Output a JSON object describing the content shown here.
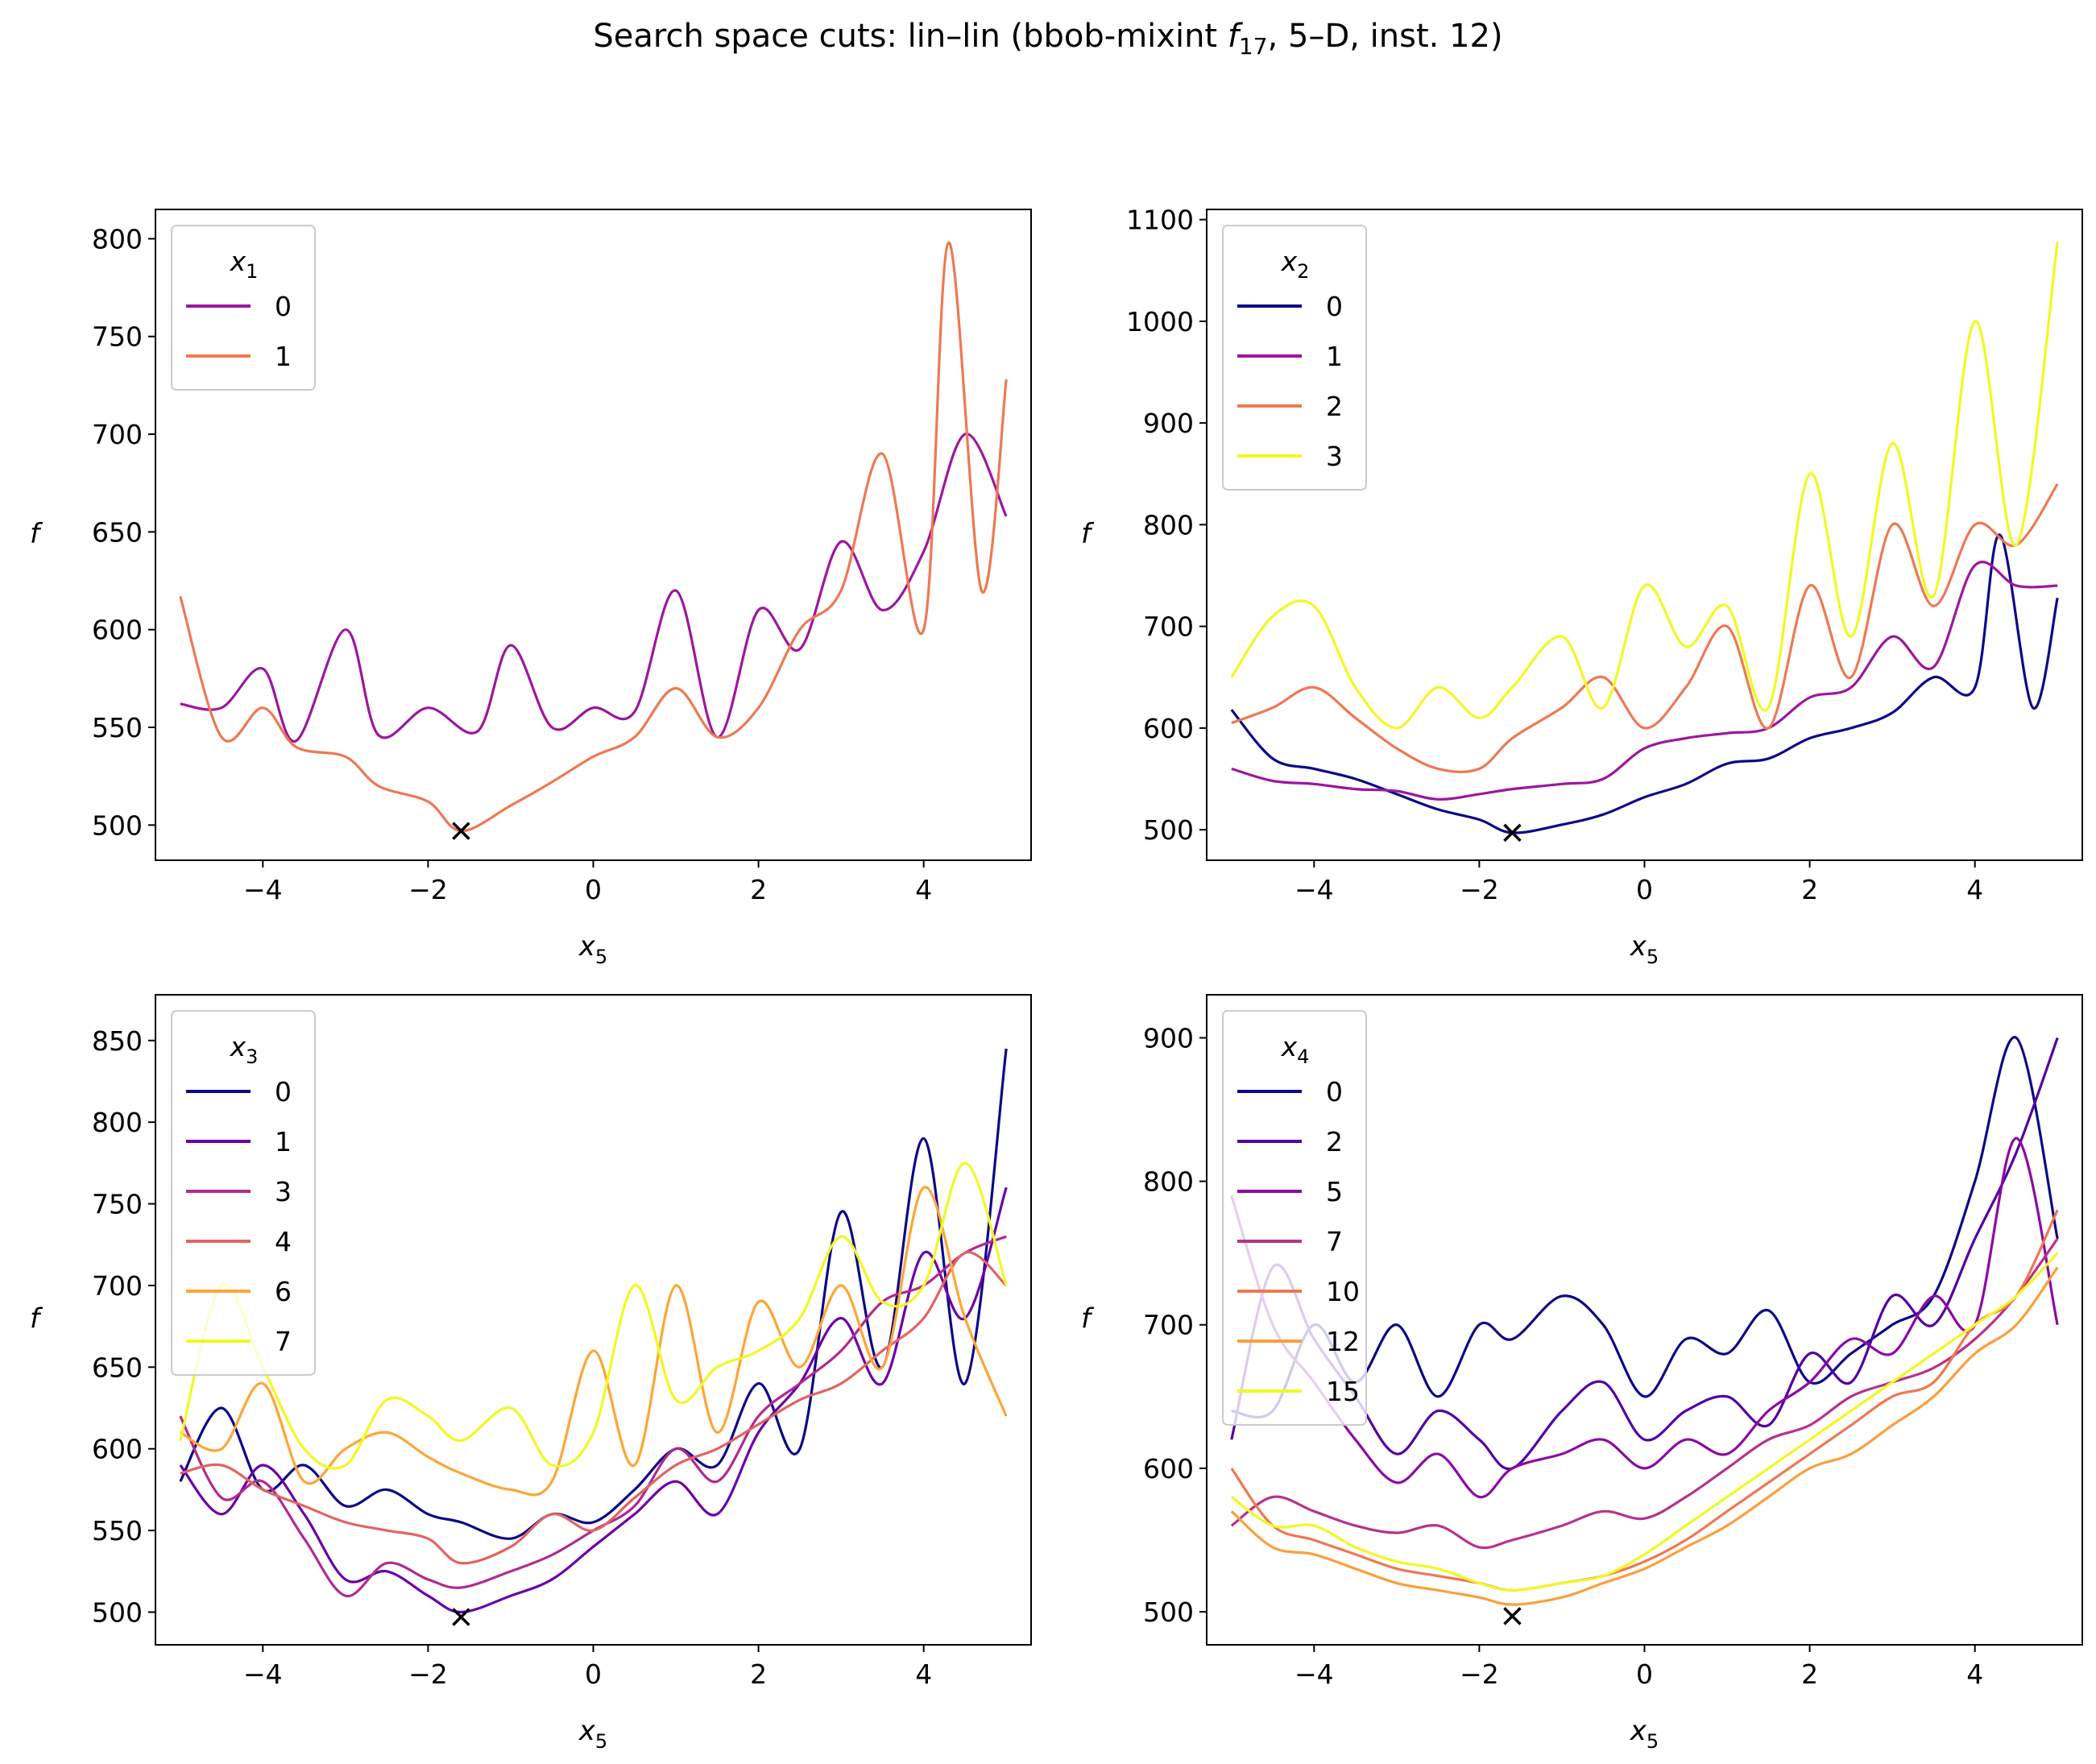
{
  "suptitle": "Search space cuts: lin–lin (bbob-mixint f17, 5–D, inst. 12)",
  "chart_data": [
    {
      "type": "line",
      "xlabel": "x5",
      "ylabel": "f",
      "xlim": [
        -5.3,
        5.3
      ],
      "ylim": [
        482,
        815
      ],
      "xticks": [
        -4,
        -2,
        0,
        2,
        4
      ],
      "yticks": [
        500,
        550,
        600,
        650,
        700,
        750,
        800
      ],
      "legend_title": "x1",
      "legend_placement": "upper left",
      "minimum_marker": {
        "x": -1.6,
        "y": 497
      },
      "series": [
        {
          "name": "0",
          "color": "#9c179e",
          "x": [
            -5,
            -4.5,
            -4,
            -3.6,
            -3.0,
            -2.6,
            -2.0,
            -1.4,
            -1.0,
            -0.5,
            0.0,
            0.5,
            1.0,
            1.5,
            2.0,
            2.5,
            3.0,
            3.5,
            4.0,
            4.5,
            5.0
          ],
          "y": [
            562,
            560,
            580,
            543,
            600,
            546,
            560,
            548,
            592,
            550,
            560,
            558,
            620,
            545,
            610,
            590,
            645,
            610,
            640,
            700,
            658
          ]
        },
        {
          "name": "1",
          "color": "#ed7953",
          "x": [
            -5,
            -4.5,
            -4,
            -3.6,
            -3.0,
            -2.6,
            -2.0,
            -1.6,
            -1.0,
            -0.5,
            0.0,
            0.5,
            1.0,
            1.5,
            2.0,
            2.5,
            3.0,
            3.5,
            4.0,
            4.3,
            4.7,
            5.0
          ],
          "y": [
            617,
            545,
            560,
            540,
            535,
            520,
            512,
            497,
            510,
            522,
            535,
            545,
            570,
            545,
            560,
            600,
            620,
            690,
            600,
            798,
            620,
            728
          ]
        }
      ]
    },
    {
      "type": "line",
      "xlabel": "x5",
      "ylabel": "f",
      "xlim": [
        -5.3,
        5.3
      ],
      "ylim": [
        470,
        1110
      ],
      "xticks": [
        -4,
        -2,
        0,
        2,
        4
      ],
      "yticks": [
        500,
        600,
        700,
        800,
        900,
        1000,
        1100
      ],
      "legend_title": "x2",
      "legend_placement": "upper left",
      "minimum_marker": {
        "x": -1.6,
        "y": 497
      },
      "series": [
        {
          "name": "0",
          "color": "#0d0887",
          "x": [
            -5,
            -4.5,
            -4,
            -3.5,
            -3.0,
            -2.5,
            -2.0,
            -1.6,
            -1.0,
            -0.5,
            0.0,
            0.5,
            1.0,
            1.5,
            2.0,
            2.5,
            3.0,
            3.5,
            4.0,
            4.3,
            4.7,
            5.0
          ],
          "y": [
            618,
            570,
            560,
            550,
            535,
            520,
            510,
            497,
            505,
            515,
            532,
            545,
            565,
            570,
            590,
            600,
            615,
            650,
            640,
            790,
            620,
            728
          ]
        },
        {
          "name": "1",
          "color": "#9c179e",
          "x": [
            -5,
            -4.5,
            -4,
            -3.5,
            -3.0,
            -2.5,
            -2.0,
            -1.6,
            -1.0,
            -0.5,
            0.0,
            0.5,
            1.0,
            1.5,
            2.0,
            2.5,
            3.0,
            3.5,
            4.0,
            4.5,
            5.0
          ],
          "y": [
            560,
            548,
            545,
            540,
            538,
            530,
            535,
            540,
            545,
            550,
            580,
            590,
            595,
            600,
            630,
            640,
            690,
            660,
            760,
            740,
            740
          ]
        },
        {
          "name": "2",
          "color": "#ed7953",
          "x": [
            -5,
            -4.5,
            -4,
            -3.5,
            -3.0,
            -2.5,
            -2.0,
            -1.6,
            -1.0,
            -0.5,
            0.0,
            0.5,
            1.0,
            1.5,
            2.0,
            2.5,
            3.0,
            3.5,
            4.0,
            4.5,
            5.0
          ],
          "y": [
            605,
            620,
            640,
            610,
            580,
            560,
            560,
            590,
            620,
            650,
            600,
            640,
            700,
            600,
            740,
            650,
            800,
            720,
            800,
            780,
            840
          ]
        },
        {
          "name": "3",
          "color": "#f0f921",
          "x": [
            -5,
            -4.5,
            -4,
            -3.5,
            -3.0,
            -2.5,
            -2.0,
            -1.6,
            -1.0,
            -0.5,
            0.0,
            0.5,
            1.0,
            1.5,
            2.0,
            2.5,
            3.0,
            3.5,
            4.0,
            4.5,
            5.0
          ],
          "y": [
            650,
            710,
            720,
            640,
            600,
            640,
            610,
            640,
            690,
            620,
            740,
            680,
            720,
            620,
            850,
            690,
            880,
            730,
            1000,
            780,
            1078
          ]
        }
      ]
    },
    {
      "type": "line",
      "xlabel": "x5",
      "ylabel": "f",
      "xlim": [
        -5.3,
        5.3
      ],
      "ylim": [
        480,
        878
      ],
      "xticks": [
        -4,
        -2,
        0,
        2,
        4
      ],
      "yticks": [
        500,
        550,
        600,
        650,
        700,
        750,
        800,
        850
      ],
      "legend_title": "x3",
      "legend_placement": "upper left",
      "minimum_marker": {
        "x": -1.6,
        "y": 497
      },
      "series": [
        {
          "name": "0",
          "color": "#0d0887",
          "x": [
            -5,
            -4.5,
            -4,
            -3.5,
            -3.0,
            -2.5,
            -2.0,
            -1.6,
            -1.0,
            -0.5,
            0.0,
            0.5,
            1.0,
            1.5,
            2.0,
            2.5,
            3.0,
            3.5,
            4.0,
            4.5,
            5.0
          ],
          "y": [
            580,
            625,
            575,
            590,
            565,
            575,
            560,
            555,
            545,
            560,
            555,
            575,
            600,
            590,
            640,
            600,
            745,
            650,
            790,
            640,
            845
          ]
        },
        {
          "name": "1",
          "color": "#6a00a8",
          "x": [
            -5,
            -4.5,
            -4,
            -3.5,
            -3.0,
            -2.5,
            -2.0,
            -1.6,
            -1.0,
            -0.5,
            0.0,
            0.5,
            1.0,
            1.5,
            2.0,
            2.5,
            3.0,
            3.5,
            4.0,
            4.5,
            5.0
          ],
          "y": [
            590,
            560,
            590,
            560,
            520,
            525,
            510,
            500,
            510,
            520,
            540,
            560,
            580,
            560,
            610,
            640,
            680,
            640,
            720,
            680,
            760
          ]
        },
        {
          "name": "3",
          "color": "#b12a90",
          "x": [
            -5,
            -4.5,
            -4,
            -3.5,
            -3.0,
            -2.5,
            -2.0,
            -1.6,
            -1.0,
            -0.5,
            0.0,
            0.5,
            1.0,
            1.5,
            2.0,
            2.5,
            3.0,
            3.5,
            4.0,
            4.5,
            5.0
          ],
          "y": [
            620,
            570,
            580,
            545,
            510,
            530,
            520,
            515,
            525,
            535,
            550,
            565,
            600,
            580,
            620,
            640,
            660,
            690,
            700,
            720,
            730
          ]
        },
        {
          "name": "4",
          "color": "#e16462",
          "x": [
            -5,
            -4.5,
            -4,
            -3.5,
            -3.0,
            -2.5,
            -2.0,
            -1.6,
            -1.0,
            -0.5,
            0.0,
            0.5,
            1.0,
            1.5,
            2.0,
            2.5,
            3.0,
            3.5,
            4.0,
            4.5,
            5.0
          ],
          "y": [
            585,
            590,
            575,
            565,
            555,
            550,
            545,
            530,
            540,
            560,
            550,
            570,
            590,
            600,
            615,
            630,
            640,
            660,
            680,
            720,
            700
          ]
        },
        {
          "name": "6",
          "color": "#fca636",
          "x": [
            -5,
            -4.5,
            -4,
            -3.5,
            -3.0,
            -2.5,
            -2.0,
            -1.6,
            -1.0,
            -0.5,
            0.0,
            0.5,
            1.0,
            1.5,
            2.0,
            2.5,
            3.0,
            3.5,
            4.0,
            4.5,
            5.0
          ],
          "y": [
            610,
            600,
            640,
            580,
            600,
            610,
            595,
            585,
            575,
            580,
            660,
            590,
            700,
            610,
            690,
            650,
            700,
            650,
            760,
            680,
            620
          ]
        },
        {
          "name": "7",
          "color": "#f0f921",
          "x": [
            -5,
            -4.5,
            -4,
            -3.5,
            -3.0,
            -2.5,
            -2.0,
            -1.6,
            -1.0,
            -0.5,
            0.0,
            0.5,
            1.0,
            1.5,
            2.0,
            2.5,
            3.0,
            3.5,
            4.0,
            4.5,
            5.0
          ],
          "y": [
            605,
            700,
            650,
            600,
            590,
            630,
            620,
            605,
            625,
            590,
            610,
            700,
            630,
            650,
            660,
            680,
            730,
            690,
            700,
            775,
            700
          ]
        }
      ]
    },
    {
      "type": "line",
      "xlabel": "x5",
      "ylabel": "f",
      "xlim": [
        -5.3,
        5.3
      ],
      "ylim": [
        477,
        930
      ],
      "xticks": [
        -4,
        -2,
        0,
        2,
        4
      ],
      "yticks": [
        500,
        600,
        700,
        800,
        900
      ],
      "legend_title": "x4",
      "legend_placement": "upper left",
      "minimum_marker": {
        "x": -1.6,
        "y": 497
      },
      "series": [
        {
          "name": "0",
          "color": "#0d0887",
          "x": [
            -5,
            -4.5,
            -4,
            -3.5,
            -3.0,
            -2.5,
            -2.0,
            -1.6,
            -1.0,
            -0.5,
            0.0,
            0.5,
            1.0,
            1.5,
            2.0,
            2.5,
            3.0,
            3.5,
            4.0,
            4.5,
            5.0
          ],
          "y": [
            640,
            640,
            700,
            660,
            700,
            650,
            700,
            690,
            720,
            700,
            650,
            690,
            680,
            710,
            660,
            680,
            700,
            720,
            800,
            900,
            760
          ]
        },
        {
          "name": "2",
          "color": "#5302a3",
          "x": [
            -5,
            -4.5,
            -4,
            -3.5,
            -3.0,
            -2.5,
            -2.0,
            -1.6,
            -1.0,
            -0.5,
            0.0,
            0.5,
            1.0,
            1.5,
            2.0,
            2.5,
            3.0,
            3.5,
            4.0,
            4.5,
            5.0
          ],
          "y": [
            620,
            740,
            690,
            650,
            610,
            640,
            620,
            600,
            640,
            660,
            620,
            640,
            650,
            630,
            680,
            660,
            720,
            700,
            760,
            820,
            900
          ]
        },
        {
          "name": "5",
          "color": "#8b0aa5",
          "x": [
            -5,
            -4.5,
            -4,
            -3.5,
            -3.0,
            -2.5,
            -2.0,
            -1.6,
            -1.0,
            -0.5,
            0.0,
            0.5,
            1.0,
            1.5,
            2.0,
            2.5,
            3.0,
            3.5,
            4.0,
            4.5,
            5.0
          ],
          "y": [
            790,
            700,
            660,
            620,
            590,
            610,
            580,
            600,
            610,
            620,
            600,
            620,
            610,
            640,
            660,
            690,
            680,
            720,
            700,
            830,
            700
          ]
        },
        {
          "name": "7",
          "color": "#b83289",
          "x": [
            -5,
            -4.5,
            -4,
            -3.5,
            -3.0,
            -2.5,
            -2.0,
            -1.6,
            -1.0,
            -0.5,
            0.0,
            0.5,
            1.0,
            1.5,
            2.0,
            2.5,
            3.0,
            3.5,
            4.0,
            4.5,
            5.0
          ],
          "y": [
            560,
            580,
            570,
            560,
            555,
            560,
            545,
            550,
            560,
            570,
            565,
            580,
            600,
            620,
            630,
            650,
            660,
            670,
            690,
            720,
            760
          ]
        },
        {
          "name": "10",
          "color": "#ed7953",
          "x": [
            -5,
            -4.5,
            -4,
            -3.5,
            -3.0,
            -2.5,
            -2.0,
            -1.6,
            -1.0,
            -0.5,
            0.0,
            0.5,
            1.0,
            1.5,
            2.0,
            2.5,
            3.0,
            3.5,
            4.0,
            4.5,
            5.0
          ],
          "y": [
            600,
            560,
            550,
            540,
            530,
            525,
            520,
            515,
            520,
            525,
            535,
            550,
            570,
            590,
            610,
            630,
            650,
            660,
            700,
            720,
            780
          ]
        },
        {
          "name": "12",
          "color": "#fb9f3a",
          "x": [
            -5,
            -4.5,
            -4,
            -3.5,
            -3.0,
            -2.5,
            -2.0,
            -1.6,
            -1.0,
            -0.5,
            0.0,
            0.5,
            1.0,
            1.5,
            2.0,
            2.5,
            3.0,
            3.5,
            4.0,
            4.5,
            5.0
          ],
          "y": [
            570,
            545,
            540,
            530,
            520,
            515,
            510,
            505,
            510,
            520,
            530,
            545,
            560,
            580,
            600,
            610,
            630,
            650,
            680,
            700,
            740
          ]
        },
        {
          "name": "15",
          "color": "#f0f921",
          "x": [
            -5,
            -4.5,
            -4,
            -3.5,
            -3.0,
            -2.5,
            -2.0,
            -1.6,
            -1.0,
            -0.5,
            0.0,
            0.5,
            1.0,
            1.5,
            2.0,
            2.5,
            3.0,
            3.5,
            4.0,
            4.5,
            5.0
          ],
          "y": [
            580,
            560,
            560,
            545,
            535,
            530,
            520,
            515,
            520,
            525,
            540,
            560,
            580,
            600,
            620,
            640,
            660,
            680,
            700,
            720,
            750
          ]
        }
      ]
    }
  ]
}
